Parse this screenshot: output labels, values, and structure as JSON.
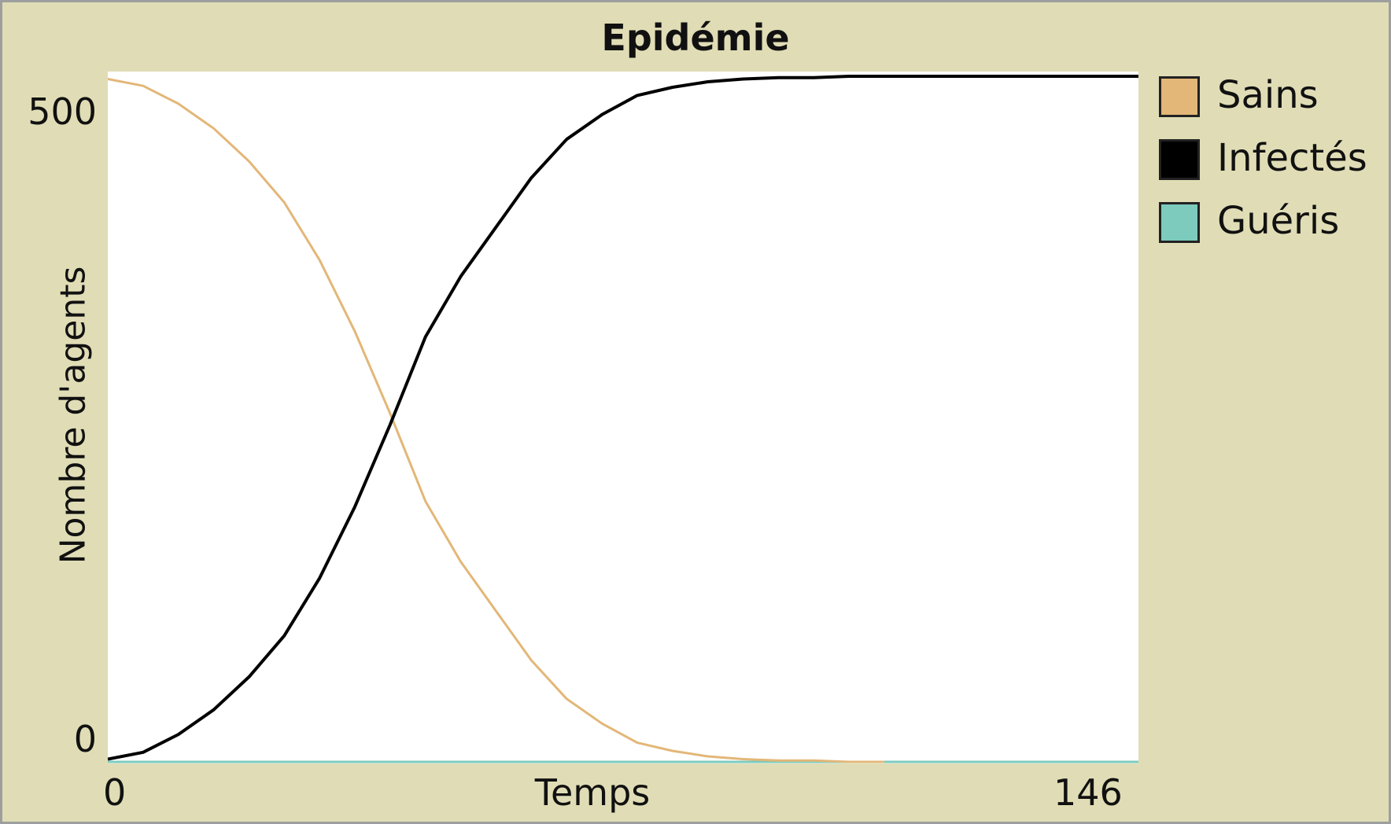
{
  "chart_data": {
    "type": "line",
    "title": "Epidémie",
    "xlabel": "Temps",
    "ylabel": "Nombre d'agents",
    "xlim": [
      0,
      146
    ],
    "ylim": [
      0,
      500
    ],
    "xticks": [
      "0",
      "146"
    ],
    "yticks": [
      "0",
      "500"
    ],
    "grid": false,
    "legend_position": "right",
    "series": [
      {
        "name": "Sains",
        "color": "#e3b778",
        "x": [
          0,
          5,
          10,
          15,
          20,
          25,
          30,
          35,
          40,
          45,
          50,
          55,
          60,
          65,
          70,
          75,
          80,
          85,
          90,
          95,
          100,
          105,
          110
        ],
        "y": [
          498,
          493,
          480,
          462,
          438,
          408,
          366,
          314,
          254,
          190,
          146,
          110,
          74,
          46,
          28,
          14,
          8,
          4,
          2,
          1,
          1,
          0,
          0
        ]
      },
      {
        "name": "Infectés",
        "color": "#000000",
        "x": [
          0,
          5,
          10,
          15,
          20,
          25,
          30,
          35,
          40,
          45,
          50,
          55,
          60,
          65,
          70,
          75,
          80,
          85,
          90,
          95,
          100,
          105,
          110,
          115,
          120,
          125,
          130,
          135,
          140,
          146
        ],
        "y": [
          2,
          7,
          20,
          38,
          62,
          92,
          134,
          186,
          246,
          310,
          354,
          390,
          426,
          454,
          472,
          486,
          492,
          496,
          498,
          499,
          499,
          500,
          500,
          500,
          500,
          500,
          500,
          500,
          500,
          500
        ]
      },
      {
        "name": "Guéris",
        "color": "#7ccbbd",
        "x": [
          0,
          146
        ],
        "y": [
          0,
          0
        ]
      }
    ]
  }
}
